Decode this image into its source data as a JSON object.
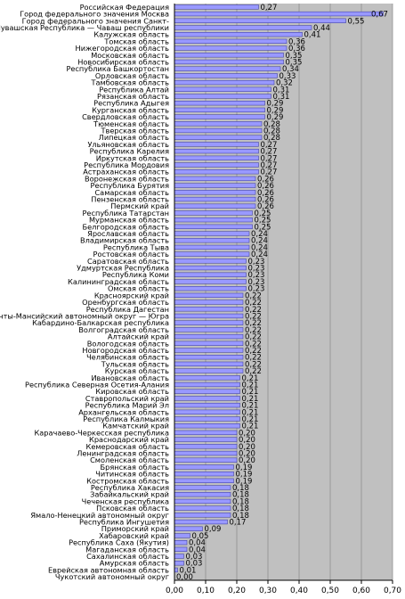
{
  "chart_data": {
    "type": "bar",
    "orientation": "horizontal",
    "xlim": [
      0,
      0.7
    ],
    "x_ticks": [
      "0,00",
      "0,10",
      "0,20",
      "0,30",
      "0,40",
      "0,50",
      "0,60",
      "0,70"
    ],
    "grid": true,
    "colors": {
      "plot_background": "#c0c0c0",
      "bar_fill": "#9999ff",
      "bar_edge": "#333399",
      "gridline": "#909090",
      "text": "#000000"
    },
    "categories": [
      "Российская Федерация",
      "Город федерального значения Москва",
      "Город федерального значения Санкт-",
      "Чувашская Республика — Чаваш республики",
      "Калужская область",
      "Томская область",
      "Нижегородская область",
      "Московская область",
      "Новосибирская область",
      "Республика Башкортостан",
      "Орловская область",
      "Тамбовская область",
      "Республика Алтай",
      "Рязанская область",
      "Республика Адыгея",
      "Курганская область",
      "Свердловская область",
      "Тюменская область",
      "Тверская область",
      "Липецкая область",
      "Ульяновская область",
      "Республика Карелия",
      "Иркутская область",
      "Республика Мордовия",
      "Астраханская область",
      "Воронежская область",
      "Республика Бурятия",
      "Самарская область",
      "Пензенская область",
      "Пермский край",
      "Республика Татарстан",
      "Мурманская область",
      "Белгородская область",
      "Ярославская область",
      "Владимирская область",
      "Республика Тыва",
      "Ростовская область",
      "Саратовская область",
      "Удмуртская Республика",
      "Республика Коми",
      "Калининградская область",
      "Омская область",
      "Красноярский край",
      "Оренбургская область",
      "Республика Дагестан",
      "Ханты-Мансийский автономный округ — Югра",
      "Кабардино-Балкарская республика",
      "Волгоградская область",
      "Алтайский край",
      "Вологодская область",
      "Новгородская область",
      "Челябинская область",
      "Тульская область",
      "Курская область",
      "Ивановская область",
      "Республика Северная Осетия-Алания",
      "Кировская область",
      "Ставропольский край",
      "Республика Марий Эл",
      "Архангельская область",
      "Республика Калмыкия",
      "Камчатский край",
      "Карачаево-Черкесская республика",
      "Краснодарский край",
      "Кемеровская область",
      "Ленинградская область",
      "Смоленская область",
      "Брянская область",
      "Читинская область",
      "Костромская область",
      "Республика Хакасия",
      "Забайкальский край",
      "Чеченская республика",
      "Псковская область",
      "Ямало-Ненецкий автономный округ",
      "Республика Ингушетия",
      "Приморский край",
      "Хабаровский край",
      "Республика Саха (Якутия)",
      "Магаданская область",
      "Сахалинская область",
      "Амурская область",
      "Еврейская автономная область",
      "Чукотский автономный округ"
    ],
    "values": [
      0.27,
      0.67,
      0.55,
      0.44,
      0.41,
      0.36,
      0.36,
      0.35,
      0.35,
      0.34,
      0.33,
      0.32,
      0.31,
      0.31,
      0.29,
      0.29,
      0.29,
      0.28,
      0.28,
      0.28,
      0.27,
      0.27,
      0.27,
      0.27,
      0.27,
      0.26,
      0.26,
      0.26,
      0.26,
      0.26,
      0.25,
      0.25,
      0.25,
      0.24,
      0.24,
      0.24,
      0.24,
      0.23,
      0.23,
      0.23,
      0.23,
      0.23,
      0.22,
      0.22,
      0.22,
      0.22,
      0.22,
      0.22,
      0.22,
      0.22,
      0.22,
      0.22,
      0.22,
      0.22,
      0.21,
      0.21,
      0.21,
      0.21,
      0.21,
      0.21,
      0.21,
      0.21,
      0.2,
      0.2,
      0.2,
      0.2,
      0.2,
      0.19,
      0.19,
      0.19,
      0.18,
      0.18,
      0.18,
      0.18,
      0.18,
      0.17,
      0.09,
      0.05,
      0.04,
      0.04,
      0.03,
      0.03,
      0.01,
      0.0
    ],
    "value_labels": [
      "0,27",
      "0,67",
      "0,55",
      "0,44",
      "0,41",
      "0,36",
      "0,36",
      "0,35",
      "0,35",
      "0,34",
      "0,33",
      "0,32",
      "0,31",
      "0,31",
      "0,29",
      "0,29",
      "0,29",
      "0,28",
      "0,28",
      "0,28",
      "0,27",
      "0,27",
      "0,27",
      "0,27",
      "0,27",
      "0,26",
      "0,26",
      "0,26",
      "0,26",
      "0,26",
      "0,25",
      "0,25",
      "0,25",
      "0,24",
      "0,24",
      "0,24",
      "0,24",
      "0,23",
      "0,23",
      "0,23",
      "0,23",
      "0,23",
      "0,22",
      "0,22",
      "0,22",
      "0,22",
      "0,22",
      "0,22",
      "0,22",
      "0,22",
      "0,22",
      "0,22",
      "0,22",
      "0,22",
      "0,21",
      "0,21",
      "0,21",
      "0,21",
      "0,21",
      "0,21",
      "0,21",
      "0,21",
      "0,20",
      "0,20",
      "0,20",
      "0,20",
      "0,20",
      "0,19",
      "0,19",
      "0,19",
      "0,18",
      "0,18",
      "0,18",
      "0,18",
      "0,18",
      "0,17",
      "0,09",
      "0,05",
      "0,04",
      "0,04",
      "0,03",
      "0,03",
      "0,01",
      "0,00"
    ]
  }
}
